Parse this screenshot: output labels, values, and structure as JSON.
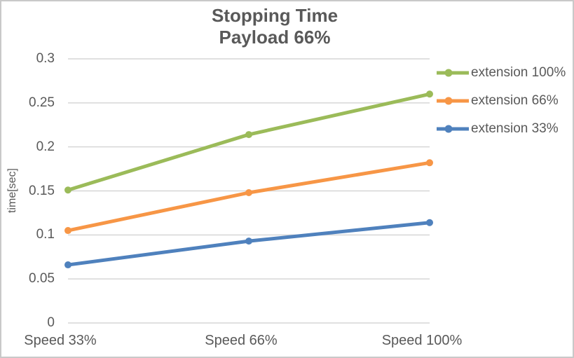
{
  "chart_data": {
    "type": "line",
    "title": "Stopping Time",
    "subtitle": "Payload 66%",
    "ylabel": "time[sec]",
    "categories": [
      "Speed 33%",
      "Speed 66%",
      "Speed 100%"
    ],
    "series": [
      {
        "name": "extension 100%",
        "color": "#9BBB59",
        "values": [
          0.151,
          0.214,
          0.26
        ]
      },
      {
        "name": "extension 66%",
        "color": "#F79646",
        "values": [
          0.105,
          0.148,
          0.182
        ]
      },
      {
        "name": "extension 33%",
        "color": "#4F81BD",
        "values": [
          0.066,
          0.093,
          0.114
        ]
      }
    ],
    "ylim": [
      0,
      0.3
    ],
    "ytick_step": 0.05,
    "ytick_labels": [
      "0",
      "0.05",
      "0.1",
      "0.15",
      "0.2",
      "0.25",
      "0.3"
    ],
    "grid": "horizontal-only",
    "legend_position": "right",
    "marker": "circle",
    "colors": {
      "text": "#595959",
      "gridline": "#D6D6D6",
      "frame_border": "#C9C9C9",
      "background": "#FFFFFF"
    }
  }
}
